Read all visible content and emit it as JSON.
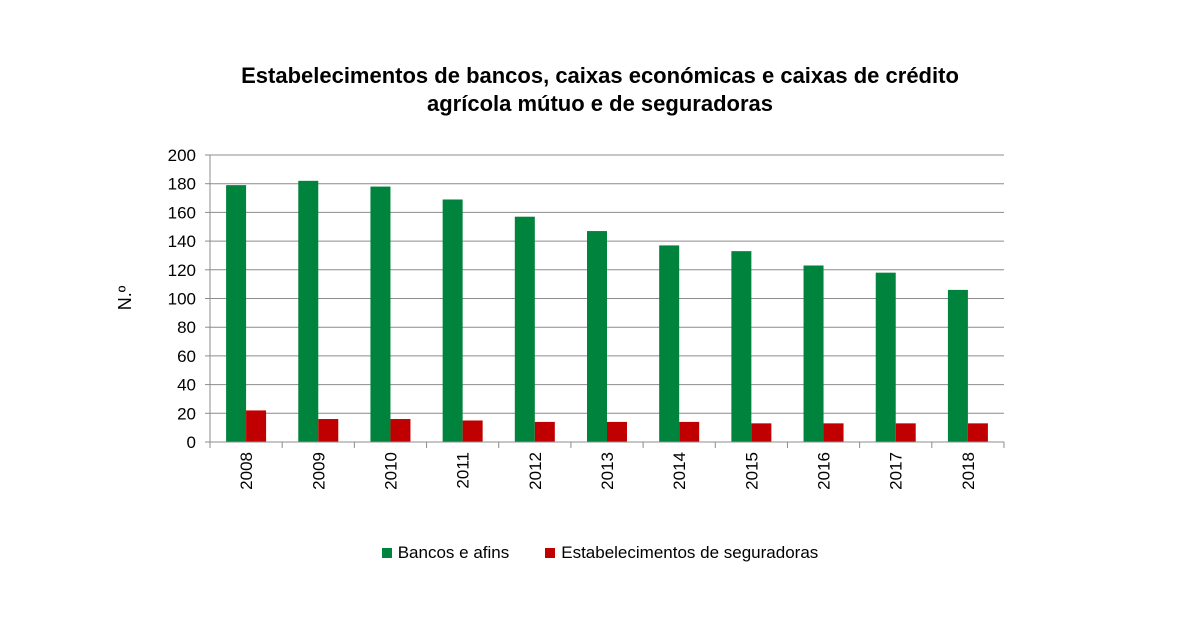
{
  "chart_data": {
    "type": "bar",
    "title_lines": [
      "Estabelecimentos de bancos, caixas económicas e caixas de crédito",
      "agrícola mútuo e de seguradoras"
    ],
    "xlabel": "",
    "ylabel": "N.º",
    "categories": [
      "2008",
      "2009",
      "2010",
      "2011",
      "2012",
      "2013",
      "2014",
      "2015",
      "2016",
      "2017",
      "2018"
    ],
    "series": [
      {
        "name": "Bancos e afins",
        "color": "#00843d",
        "values": [
          179,
          182,
          178,
          169,
          157,
          147,
          137,
          133,
          123,
          118,
          106
        ]
      },
      {
        "name": "Estabelecimentos de seguradoras",
        "color": "#c00000",
        "values": [
          22,
          16,
          16,
          15,
          14,
          14,
          14,
          13,
          13,
          13,
          13
        ]
      }
    ],
    "ylim": [
      0,
      200
    ],
    "yticks": [
      0,
      20,
      40,
      60,
      80,
      100,
      120,
      140,
      160,
      180,
      200
    ],
    "grid": true,
    "legend_position": "bottom"
  }
}
